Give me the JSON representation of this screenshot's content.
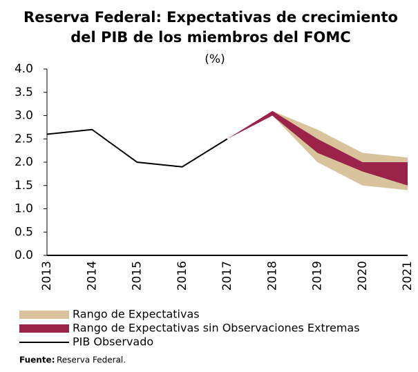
{
  "chart_data": {
    "type": "range-line",
    "title": [
      "Reserva Federal: Expectativas de crecimiento",
      "del PIB de los miembros del FOMC"
    ],
    "subtitle": "(%)",
    "categories": [
      "2013",
      "2014",
      "2015",
      "2016",
      "2017",
      "2018",
      "2019",
      "2020",
      "2021"
    ],
    "ylim": [
      0,
      4
    ],
    "yticks": [
      {
        "value": 0,
        "label": "0.0"
      },
      0.5,
      {
        "value": 1,
        "label": "1.0"
      },
      1.5,
      {
        "value": 2,
        "label": "2.0"
      },
      2.5,
      {
        "value": 3,
        "label": "3.0"
      },
      3.5,
      {
        "value": 4,
        "label": "4.0"
      }
    ],
    "series": [
      {
        "name": "Rango de Expectativas",
        "color": "#d8c39d",
        "kind": "area",
        "low": [
          null,
          null,
          null,
          null,
          2.5,
          3.0,
          2.0,
          1.5,
          1.4
        ],
        "high": [
          null,
          null,
          null,
          null,
          2.5,
          3.1,
          2.7,
          2.2,
          2.1
        ]
      },
      {
        "name": "Rango de Expectativas sin Observaciones Extremas",
        "color": "#9b2248",
        "kind": "area",
        "low": [
          null,
          null,
          null,
          null,
          2.5,
          3.0,
          2.2,
          1.8,
          1.5
        ],
        "high": [
          null,
          null,
          null,
          null,
          2.5,
          3.1,
          2.5,
          2.0,
          2.0
        ]
      },
      {
        "name": "PIB Observado",
        "color": "#000000",
        "kind": "line",
        "values": [
          2.6,
          2.7,
          2.0,
          1.9,
          2.5,
          null,
          null,
          null,
          null
        ]
      }
    ],
    "source": {
      "label": "Fuente:",
      "text": "Reserva Federal."
    }
  }
}
